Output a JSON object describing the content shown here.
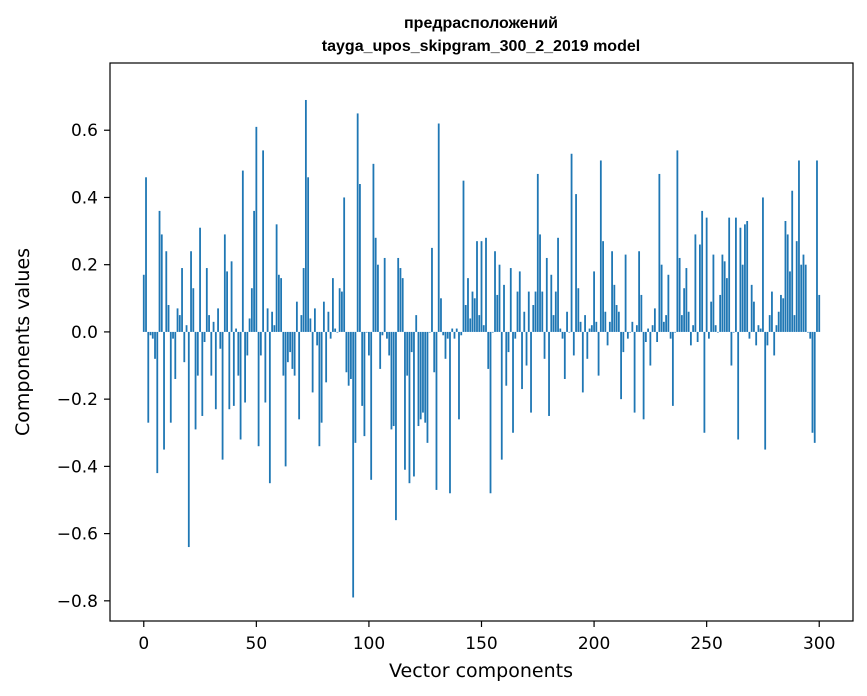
{
  "chart_data": {
    "type": "bar",
    "title": "предрасположений",
    "subtitle": "tayga_upos_skipgram_300_2_2019 model",
    "xlabel": "Vector components",
    "ylabel": "Components values",
    "xlim": [
      -15,
      315
    ],
    "ylim": [
      -0.86,
      0.8
    ],
    "xticks": [
      0,
      50,
      100,
      150,
      200,
      250,
      300
    ],
    "xtick_labels": [
      "0",
      "50",
      "100",
      "150",
      "200",
      "250",
      "300"
    ],
    "yticks": [
      -0.8,
      -0.6,
      -0.4,
      -0.2,
      0.0,
      0.2,
      0.4,
      0.6
    ],
    "ytick_labels": [
      "−0.8",
      "−0.6",
      "−0.4",
      "−0.2",
      "0.0",
      "0.2",
      "0.4",
      "0.6"
    ],
    "grid": false,
    "color": "#1f77b4",
    "values": [
      0.17,
      0.46,
      -0.27,
      -0.01,
      -0.02,
      -0.08,
      -0.42,
      0.36,
      0.29,
      -0.35,
      0.24,
      0.08,
      -0.27,
      -0.02,
      -0.14,
      0.07,
      0.05,
      0.19,
      -0.09,
      0.02,
      -0.64,
      0.24,
      0.13,
      -0.29,
      -0.13,
      0.31,
      -0.25,
      -0.03,
      0.19,
      0.05,
      -0.13,
      0.03,
      -0.23,
      0.07,
      -0.05,
      -0.38,
      0.29,
      0.18,
      -0.23,
      0.21,
      -0.22,
      0.01,
      -0.13,
      -0.32,
      0.48,
      -0.21,
      -0.07,
      0.04,
      0.13,
      0.36,
      0.61,
      -0.34,
      -0.07,
      0.54,
      -0.21,
      0.07,
      -0.45,
      0.06,
      0.02,
      0.32,
      0.17,
      0.16,
      -0.13,
      -0.4,
      -0.09,
      -0.06,
      -0.11,
      -0.13,
      0.09,
      -0.26,
      0.05,
      0.19,
      0.69,
      0.46,
      0.04,
      -0.18,
      0.07,
      -0.04,
      -0.34,
      -0.27,
      0.09,
      -0.15,
      0.06,
      -0.02,
      0.16,
      0.01,
      0.0,
      0.13,
      0.12,
      0.4,
      -0.12,
      -0.16,
      -0.14,
      -0.79,
      -0.33,
      0.65,
      0.44,
      -0.22,
      -0.31,
      0.0,
      -0.07,
      -0.44,
      0.5,
      0.28,
      0.2,
      -0.11,
      -0.01,
      0.22,
      -0.02,
      -0.07,
      -0.29,
      -0.28,
      -0.56,
      0.22,
      0.19,
      0.16,
      -0.41,
      -0.13,
      -0.45,
      -0.06,
      -0.43,
      0.05,
      -0.28,
      -0.26,
      -0.24,
      -0.27,
      -0.33,
      0.0,
      0.25,
      -0.12,
      -0.47,
      0.62,
      0.1,
      -0.01,
      -0.08,
      -0.02,
      -0.48,
      0.01,
      -0.02,
      0.01,
      -0.26,
      -0.01,
      0.45,
      0.08,
      0.16,
      0.04,
      0.12,
      0.1,
      0.27,
      0.05,
      0.27,
      0.02,
      0.28,
      -0.11,
      -0.48,
      0.0,
      0.24,
      0.11,
      0.2,
      -0.38,
      0.14,
      -0.16,
      -0.06,
      0.19,
      -0.3,
      -0.02,
      0.12,
      0.18,
      -0.17,
      0.06,
      -0.1,
      0.12,
      -0.24,
      0.08,
      0.12,
      0.47,
      0.29,
      0.12,
      -0.08,
      0.22,
      -0.25,
      0.17,
      0.05,
      0.12,
      0.28,
      0.01,
      -0.02,
      -0.14,
      0.06,
      0.0,
      0.53,
      -0.07,
      0.41,
      0.13,
      0.03,
      -0.18,
      0.05,
      -0.08,
      0.01,
      0.02,
      0.18,
      0.03,
      -0.13,
      0.51,
      0.27,
      0.06,
      -0.04,
      0.03,
      0.24,
      0.14,
      0.08,
      0.06,
      -0.2,
      -0.06,
      0.23,
      -0.02,
      0.0,
      0.03,
      -0.24,
      0.02,
      0.24,
      0.11,
      -0.26,
      -0.03,
      0.01,
      -0.1,
      0.02,
      0.07,
      -0.03,
      0.47,
      0.2,
      0.03,
      0.05,
      0.17,
      -0.02,
      -0.22,
      0.0,
      0.54,
      0.22,
      0.05,
      0.13,
      0.19,
      0.06,
      -0.04,
      0.02,
      0.29,
      -0.03,
      0.26,
      0.36,
      -0.3,
      0.34,
      -0.02,
      0.09,
      0.23,
      0.02,
      0.0,
      0.11,
      0.23,
      0.21,
      0.16,
      0.34,
      -0.1,
      0.0,
      0.34,
      -0.32,
      0.31,
      0.2,
      0.32,
      0.33,
      -0.02,
      0.14,
      0.09,
      -0.04,
      0.02,
      0.01,
      0.4,
      -0.35,
      -0.04,
      0.05,
      0.12,
      -0.07,
      0.02,
      0.06,
      0.11,
      0.1,
      0.33,
      0.29,
      0.18,
      0.42,
      0.05,
      0.27,
      0.51,
      0.2,
      0.23,
      0.2,
      0.0,
      -0.02,
      -0.3,
      -0.33,
      0.51,
      0.11
    ]
  }
}
